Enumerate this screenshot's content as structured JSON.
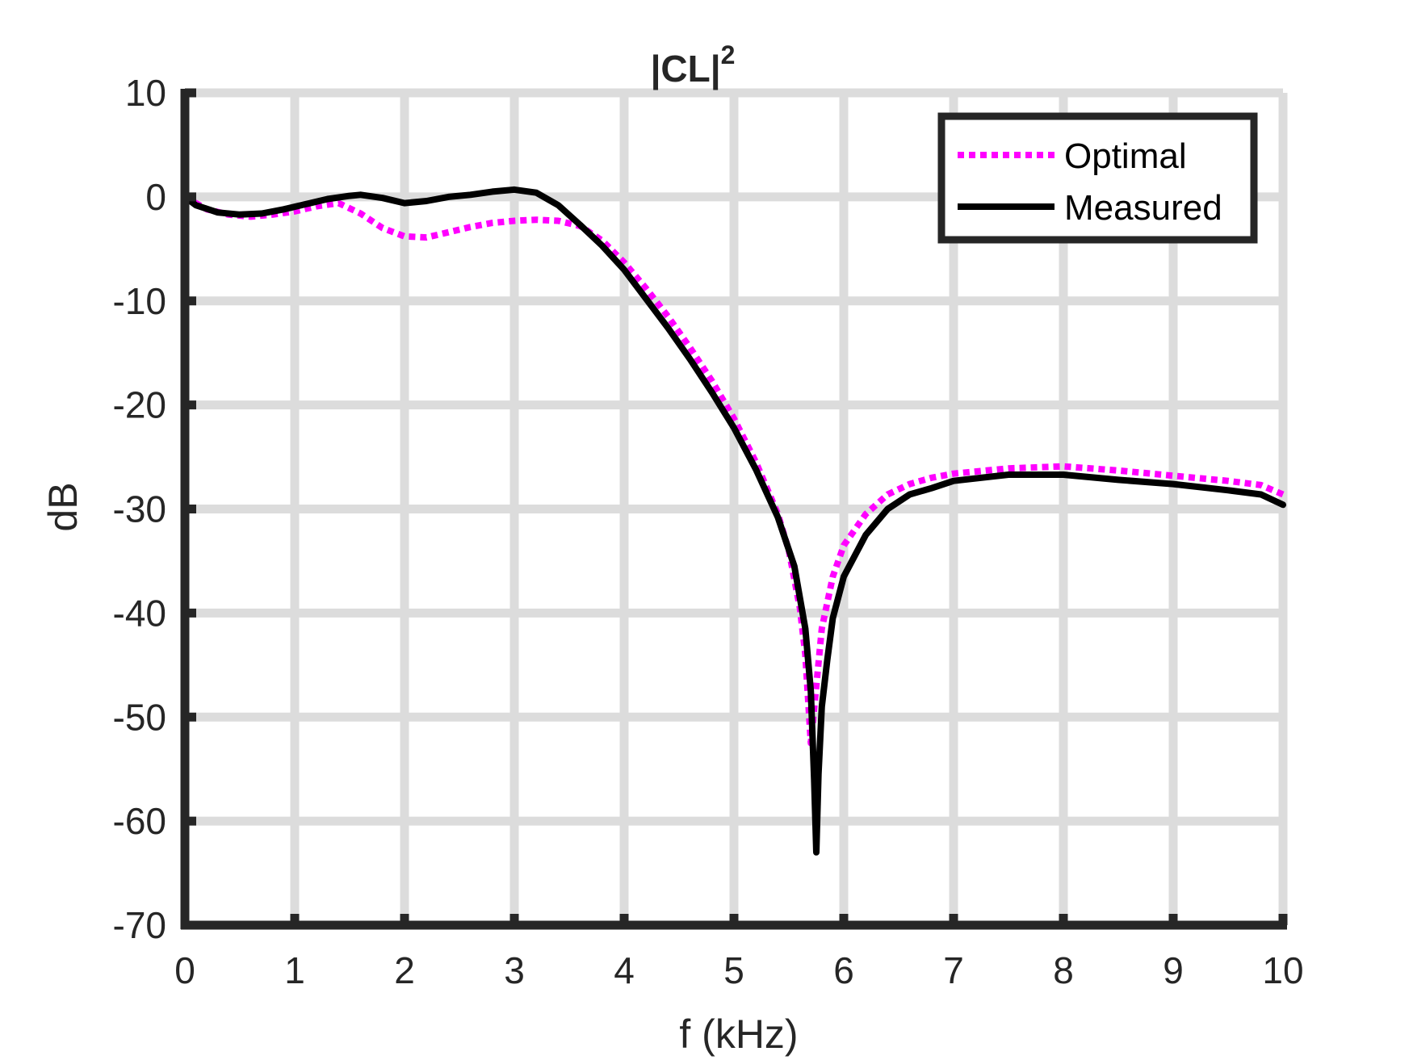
{
  "chart_data": {
    "type": "line",
    "title": "|CL|",
    "title_superscript": "2",
    "xlabel": "f (kHz)",
    "ylabel": "dB",
    "xlim": [
      0,
      10
    ],
    "ylim": [
      -70,
      10
    ],
    "x_ticks": [
      0,
      1,
      2,
      3,
      4,
      5,
      6,
      7,
      8,
      9,
      10
    ],
    "y_ticks": [
      10,
      0,
      -10,
      -20,
      -30,
      -40,
      -50,
      -60,
      -70
    ],
    "x_tick_labels": [
      "0",
      "1",
      "2",
      "3",
      "4",
      "5",
      "6",
      "7",
      "8",
      "9",
      "10"
    ],
    "y_tick_labels": [
      "10",
      "0",
      "-10",
      "-20",
      "-30",
      "-40",
      "-50",
      "-60",
      "-70"
    ],
    "grid": true,
    "legend_position": "top-right",
    "colors": {
      "optimal": "#ff00ff",
      "measured": "#000000",
      "grid": "#dcdcdc",
      "axes": "#262626"
    },
    "series": [
      {
        "name": "Optimal",
        "style": "dotted",
        "color": "#ff00ff",
        "points": [
          [
            0,
            0
          ],
          [
            0.2,
            -1.2
          ],
          [
            0.4,
            -1.7
          ],
          [
            0.6,
            -1.9
          ],
          [
            0.8,
            -1.7
          ],
          [
            1.0,
            -1.4
          ],
          [
            1.2,
            -0.9
          ],
          [
            1.4,
            -0.6
          ],
          [
            1.6,
            -1.6
          ],
          [
            1.8,
            -3.0
          ],
          [
            2.0,
            -3.8
          ],
          [
            2.2,
            -3.9
          ],
          [
            2.4,
            -3.4
          ],
          [
            2.6,
            -2.9
          ],
          [
            2.8,
            -2.5
          ],
          [
            3.0,
            -2.3
          ],
          [
            3.2,
            -2.2
          ],
          [
            3.4,
            -2.3
          ],
          [
            3.6,
            -2.8
          ],
          [
            3.8,
            -4.2
          ],
          [
            4.0,
            -6.3
          ],
          [
            4.2,
            -8.8
          ],
          [
            4.4,
            -11.5
          ],
          [
            4.6,
            -14.5
          ],
          [
            4.8,
            -17.7
          ],
          [
            5.0,
            -21.3
          ],
          [
            5.2,
            -25.5
          ],
          [
            5.4,
            -30.5
          ],
          [
            5.5,
            -34.0
          ],
          [
            5.6,
            -39.5
          ],
          [
            5.65,
            -44.0
          ],
          [
            5.7,
            -52.5
          ],
          [
            5.75,
            -47.0
          ],
          [
            5.8,
            -41.5
          ],
          [
            5.9,
            -36.5
          ],
          [
            6.0,
            -33.5
          ],
          [
            6.2,
            -30.5
          ],
          [
            6.4,
            -28.6
          ],
          [
            6.6,
            -27.6
          ],
          [
            6.8,
            -27.0
          ],
          [
            7.0,
            -26.6
          ],
          [
            7.5,
            -26.1
          ],
          [
            8.0,
            -25.9
          ],
          [
            8.5,
            -26.3
          ],
          [
            9.0,
            -26.8
          ],
          [
            9.5,
            -27.3
          ],
          [
            9.8,
            -27.7
          ],
          [
            10.0,
            -28.6
          ]
        ]
      },
      {
        "name": "Measured",
        "style": "solid",
        "color": "#000000",
        "points": [
          [
            0,
            0
          ],
          [
            0.1,
            -0.8
          ],
          [
            0.3,
            -1.5
          ],
          [
            0.5,
            -1.7
          ],
          [
            0.7,
            -1.6
          ],
          [
            0.9,
            -1.2
          ],
          [
            1.1,
            -0.7
          ],
          [
            1.3,
            -0.2
          ],
          [
            1.5,
            0.1
          ],
          [
            1.6,
            0.2
          ],
          [
            1.8,
            -0.1
          ],
          [
            2.0,
            -0.6
          ],
          [
            2.2,
            -0.4
          ],
          [
            2.4,
            0.0
          ],
          [
            2.6,
            0.2
          ],
          [
            2.8,
            0.5
          ],
          [
            3.0,
            0.7
          ],
          [
            3.2,
            0.4
          ],
          [
            3.4,
            -0.8
          ],
          [
            3.6,
            -2.7
          ],
          [
            3.8,
            -4.7
          ],
          [
            4.0,
            -7.0
          ],
          [
            4.2,
            -9.8
          ],
          [
            4.4,
            -12.6
          ],
          [
            4.6,
            -15.6
          ],
          [
            4.8,
            -18.8
          ],
          [
            5.0,
            -22.2
          ],
          [
            5.2,
            -26.2
          ],
          [
            5.4,
            -30.8
          ],
          [
            5.55,
            -35.5
          ],
          [
            5.65,
            -41.5
          ],
          [
            5.7,
            -47.5
          ],
          [
            5.73,
            -56.0
          ],
          [
            5.75,
            -63.0
          ],
          [
            5.77,
            -55.5
          ],
          [
            5.8,
            -49.0
          ],
          [
            5.85,
            -44.5
          ],
          [
            5.9,
            -40.5
          ],
          [
            6.0,
            -36.5
          ],
          [
            6.2,
            -32.5
          ],
          [
            6.4,
            -30.0
          ],
          [
            6.6,
            -28.6
          ],
          [
            6.8,
            -28.0
          ],
          [
            7.0,
            -27.3
          ],
          [
            7.5,
            -26.7
          ],
          [
            8.0,
            -26.7
          ],
          [
            8.5,
            -27.2
          ],
          [
            9.0,
            -27.6
          ],
          [
            9.5,
            -28.2
          ],
          [
            9.8,
            -28.6
          ],
          [
            10.0,
            -29.6
          ]
        ]
      }
    ]
  }
}
